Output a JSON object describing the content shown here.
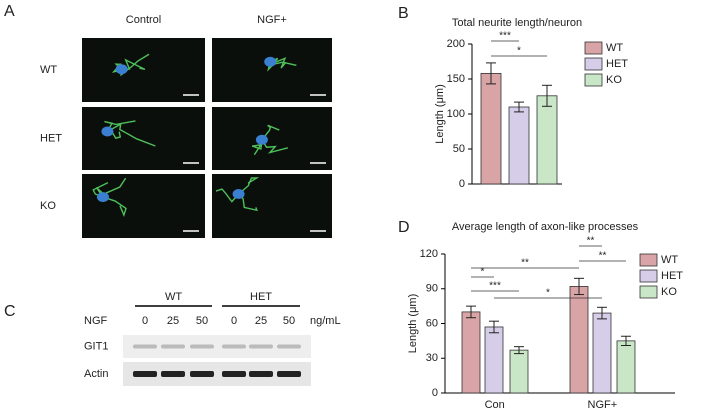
{
  "panels": [
    "A",
    "B",
    "C",
    "D"
  ],
  "micrograph": {
    "columns": [
      "Control",
      "NGF+"
    ],
    "rows": [
      "WT",
      "HET",
      "KO"
    ]
  },
  "blot": {
    "groups": [
      "WT",
      "HET"
    ],
    "treatment": "NGF",
    "doses": [
      "0",
      "25",
      "50",
      "0",
      "25",
      "50"
    ],
    "unit": "ng/mL",
    "bands": [
      "GIT1",
      "Actin"
    ]
  },
  "chart_data": [
    {
      "type": "bar",
      "title": "Total neurite length/neuron",
      "ylabel": "Length (μm)",
      "categories": [
        null
      ],
      "series": [
        {
          "name": "WT",
          "color": "#d9a4a6",
          "values": [
            158
          ],
          "errors": [
            15
          ]
        },
        {
          "name": "HET",
          "color": "#d6cde9",
          "values": [
            110
          ],
          "errors": [
            7
          ]
        },
        {
          "name": "KO",
          "color": "#c9e7c6",
          "values": [
            126
          ],
          "errors": [
            15
          ]
        }
      ],
      "ylim": [
        0,
        200
      ],
      "yticks": [
        0,
        50,
        100,
        150,
        200
      ],
      "annotations": [
        "***",
        "*"
      ]
    },
    {
      "type": "bar",
      "title": "Average length of axon-like processes",
      "ylabel": "Length (μm)",
      "categories": [
        "Con",
        "NGF+"
      ],
      "series": [
        {
          "name": "WT",
          "color": "#d9a4a6",
          "values": [
            70,
            92
          ],
          "errors": [
            5,
            7
          ]
        },
        {
          "name": "HET",
          "color": "#d6cde9",
          "values": [
            57,
            69
          ],
          "errors": [
            5,
            5
          ]
        },
        {
          "name": "KO",
          "color": "#c9e7c6",
          "values": [
            37,
            45
          ],
          "errors": [
            3,
            4
          ]
        }
      ],
      "ylim": [
        0,
        120
      ],
      "yticks": [
        0,
        30,
        60,
        90,
        120
      ],
      "annotations": [
        "*",
        "***",
        "**",
        "*",
        "**",
        "**"
      ]
    }
  ]
}
